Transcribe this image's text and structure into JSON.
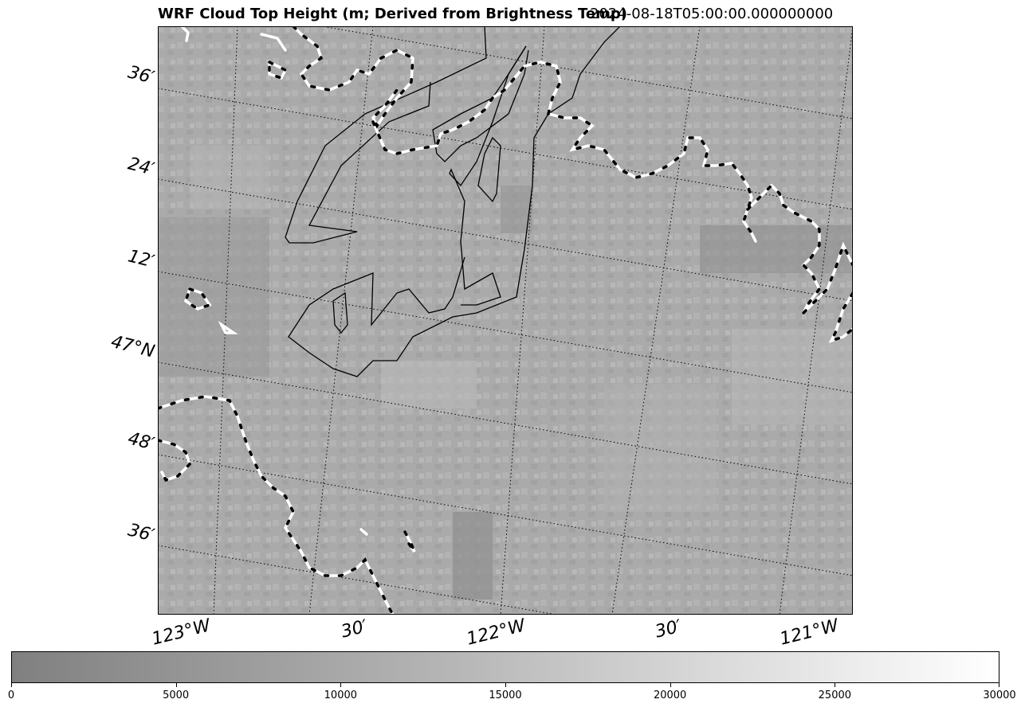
{
  "title": "WRF Cloud Top Height (m; Derived from Brightness Temp)",
  "timestamp": "2024-08-18T05:00:00.000000000",
  "lat_labels": [
    "36′",
    "24′",
    "12′",
    "47°N",
    "48′",
    "36′"
  ],
  "lon_labels": [
    "123°W",
    "30′",
    "122°W",
    "30′",
    "121°W"
  ],
  "colorbar": {
    "ticks": [
      "0",
      "5000",
      "10000",
      "15000",
      "20000",
      "25000",
      "30000"
    ],
    "range": [
      0,
      30000
    ],
    "colors": {
      "low": "#808080",
      "high": "#ffffff"
    }
  },
  "colors": {
    "field_base": "#a9a9a9",
    "coast_dash_light": "#ffffff",
    "coast_dash_dark": "#000000",
    "contour": "#000000"
  }
}
